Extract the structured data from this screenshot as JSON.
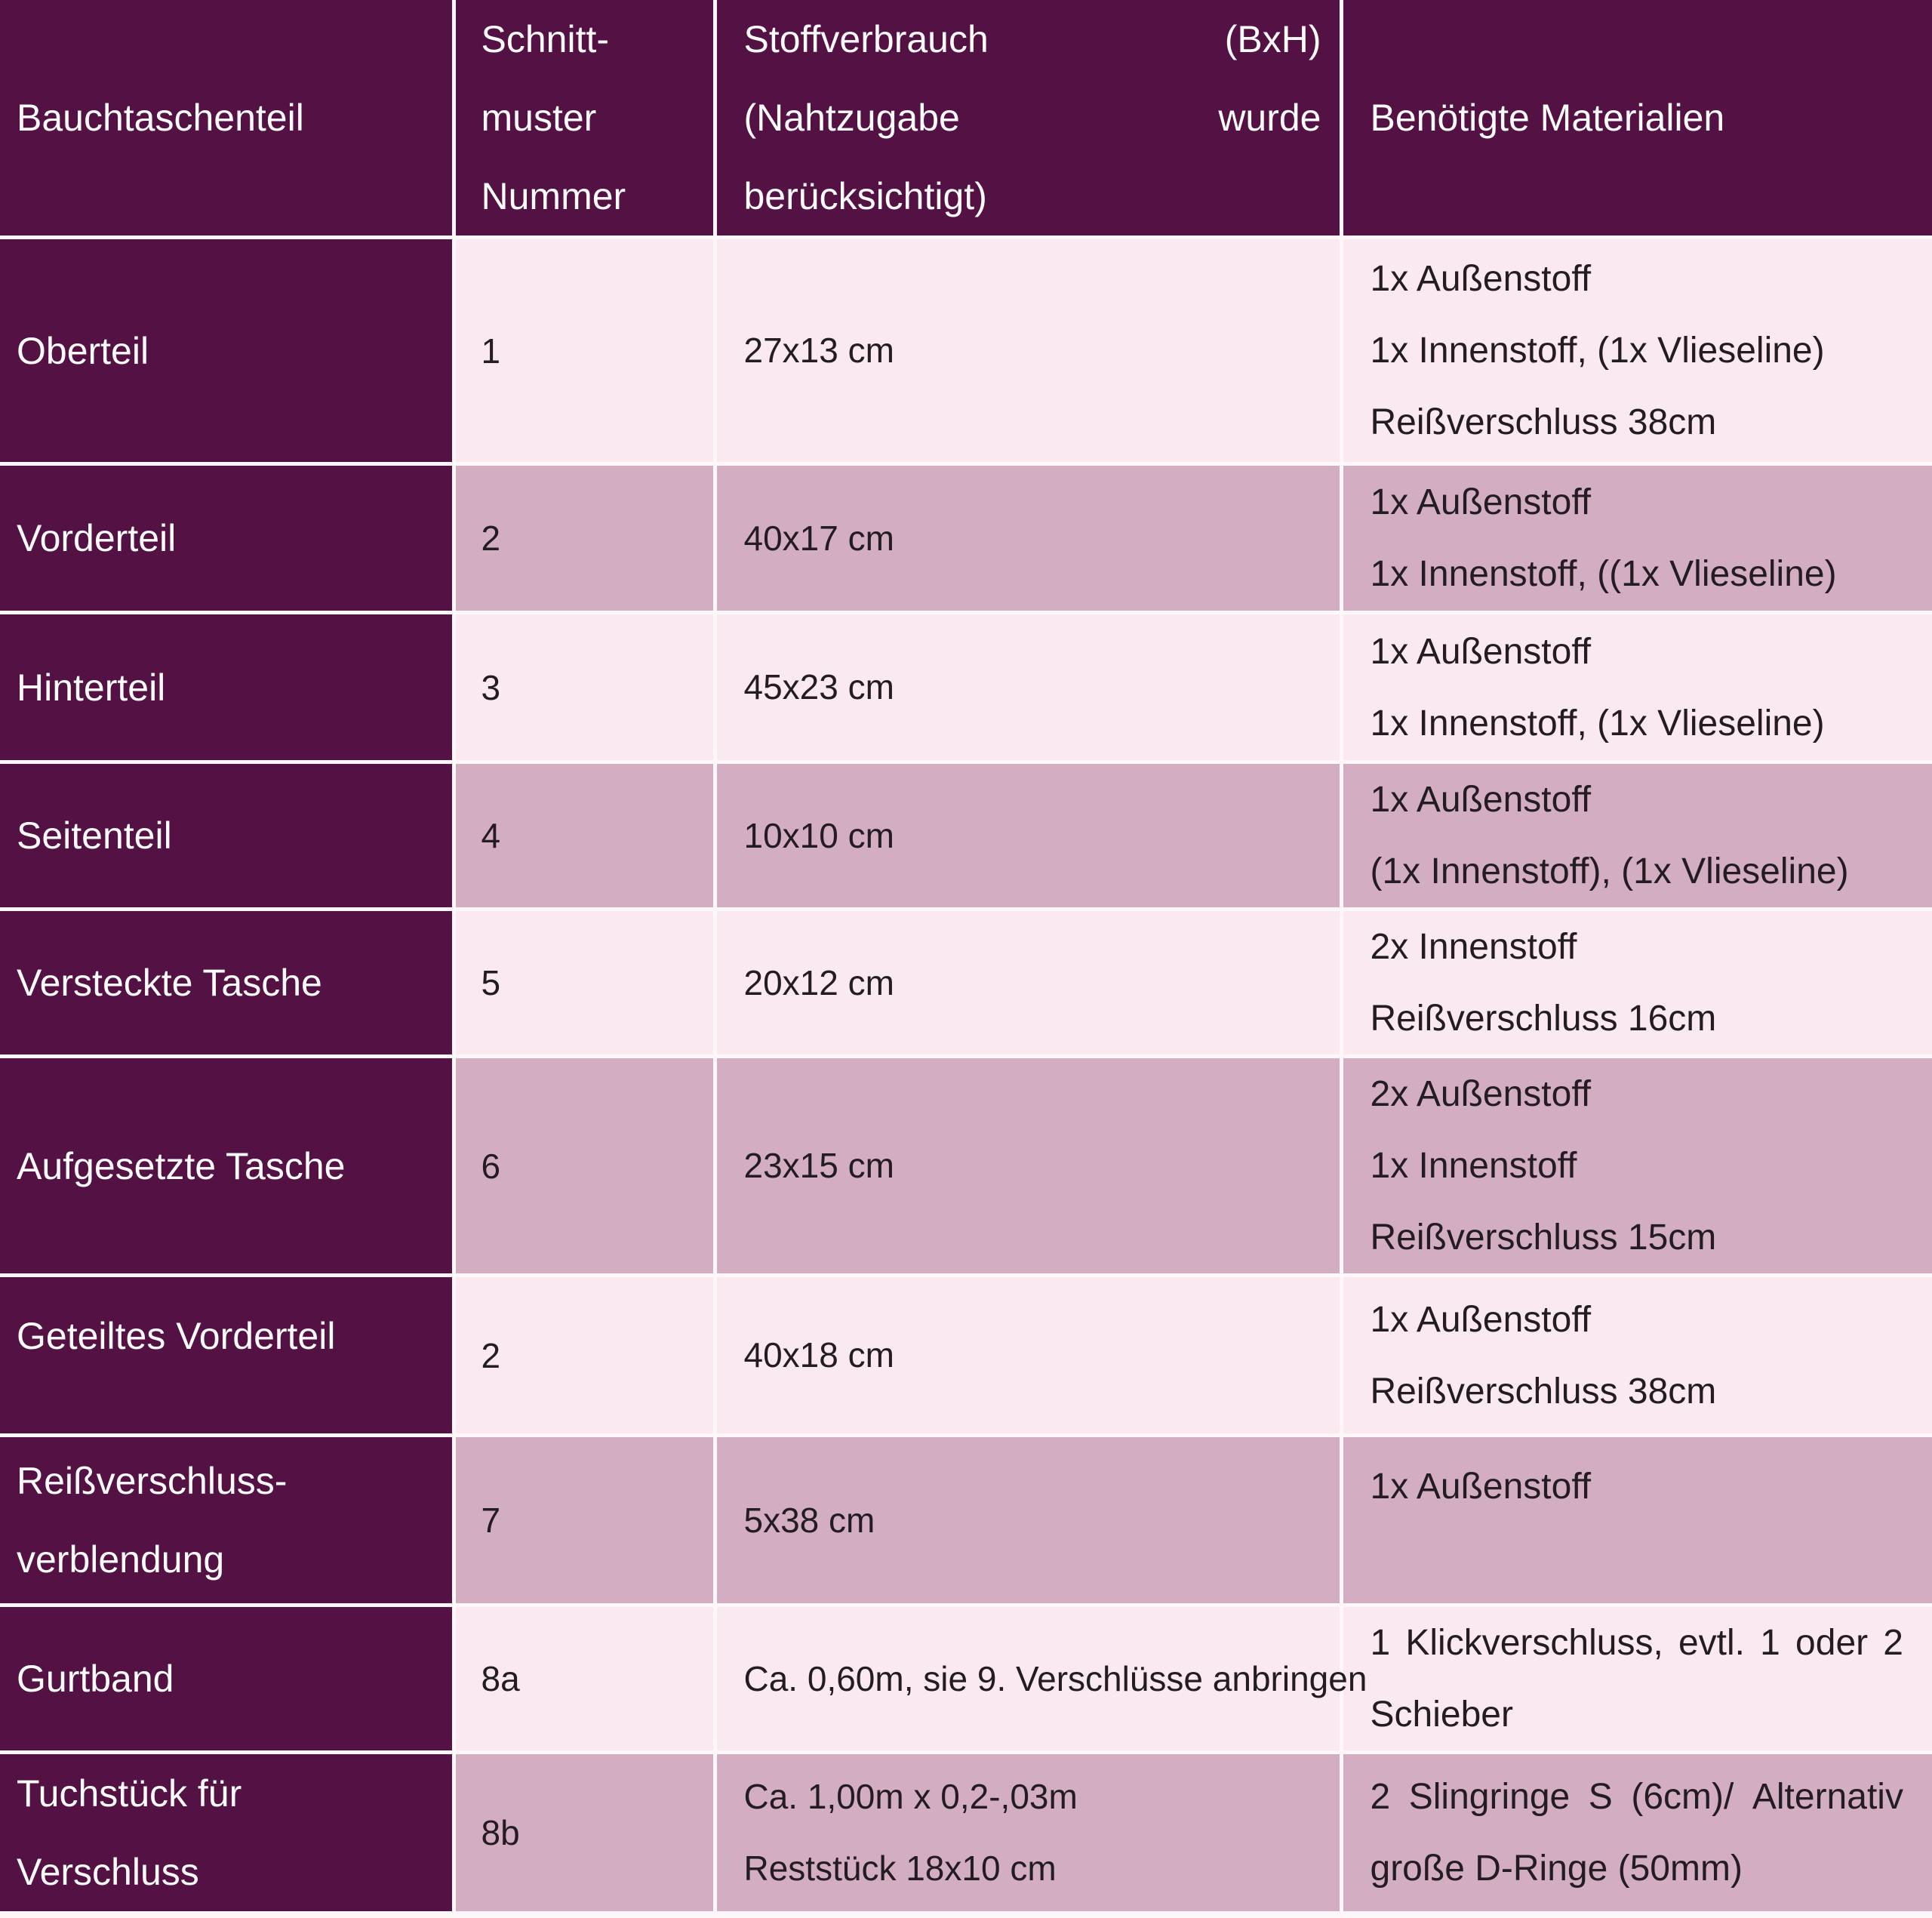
{
  "colors": {
    "header_bg": "#541144",
    "row_light": "#fae9f1",
    "row_dark": "#d3aec3",
    "grid": "#fdf7fa",
    "header_text": "#fdfbfc",
    "body_text": "#241c23"
  },
  "table": {
    "header": {
      "part": "Bauchtaschenteil",
      "pattern_lines": [
        "Schnitt-",
        "muster",
        "Nummer"
      ],
      "fabric_lines": [
        [
          "Stoffverbrauch",
          "(BxH)"
        ],
        [
          "(Nahtzugabe",
          "wurde"
        ],
        [
          "berücksichtigt)",
          ""
        ]
      ],
      "materials": "Benötigte Materialien"
    },
    "rows": [
      {
        "part_lines": [
          "Oberteil"
        ],
        "pattern_number": "1",
        "fabric_lines": [
          "27x13 cm"
        ],
        "materials_lines": [
          "1x Außenstoff",
          "1x Innenstoff, (1x Vlieseline)",
          "Reißverschluss 38cm"
        ],
        "materials_justify": false
      },
      {
        "part_lines": [
          "Vorderteil"
        ],
        "pattern_number": "2",
        "fabric_lines": [
          "40x17 cm"
        ],
        "materials_lines": [
          "1x Außenstoff",
          "1x Innenstoff, ((1x Vlieseline)"
        ],
        "materials_justify": false
      },
      {
        "part_lines": [
          "Hinterteil"
        ],
        "pattern_number": "3",
        "fabric_lines": [
          "45x23 cm"
        ],
        "materials_lines": [
          "1x Außenstoff",
          "1x Innenstoff, (1x Vlieseline)"
        ],
        "materials_justify": false
      },
      {
        "part_lines": [
          "Seitenteil"
        ],
        "pattern_number": "4",
        "fabric_lines": [
          "10x10 cm"
        ],
        "materials_lines": [
          "1x Außenstoff",
          "(1x Innenstoff), (1x Vlieseline)"
        ],
        "materials_justify": false
      },
      {
        "part_lines": [
          "Versteckte Tasche"
        ],
        "pattern_number": "5",
        "fabric_lines": [
          "20x12 cm"
        ],
        "materials_lines": [
          "2x Innenstoff",
          "Reißverschluss 16cm"
        ],
        "materials_justify": false
      },
      {
        "part_lines": [
          "Aufgesetzte Tasche"
        ],
        "pattern_number": "6",
        "fabric_lines": [
          "23x15 cm"
        ],
        "materials_lines": [
          "2x Außenstoff",
          "1x Innenstoff",
          "Reißverschluss 15cm"
        ],
        "materials_justify": false
      },
      {
        "part_lines": [
          "Geteiltes Vorderteil"
        ],
        "pattern_number": "2",
        "fabric_lines": [
          "40x18 cm"
        ],
        "materials_lines": [
          "1x Außenstoff",
          "Reißverschluss 38cm"
        ],
        "materials_justify": false
      },
      {
        "part_lines": [
          "Reißverschluss-",
          "verblendung"
        ],
        "pattern_number": "7",
        "fabric_lines": [
          "5x38 cm"
        ],
        "materials_lines": [
          "1x Außenstoff"
        ],
        "materials_justify": false
      },
      {
        "part_lines": [
          "Gurtband"
        ],
        "pattern_number": "8a",
        "fabric_lines": [
          "Ca. 0,60m, sie 9. Verschlüsse anbringen"
        ],
        "materials_lines": [
          "1 Klickverschluss, evtl. 1 oder 2",
          "Schieber"
        ],
        "materials_justify": true
      },
      {
        "part_lines": [
          "Tuchstück für",
          "Verschluss"
        ],
        "pattern_number": "8b",
        "fabric_lines": [
          "Ca. 1,00m x 0,2-,03m",
          "Reststück 18x10 cm"
        ],
        "materials_lines": [
          "2 Slingringe S (6cm)/ Alternativ",
          "große D-Ringe (50mm)"
        ],
        "materials_justify": true
      }
    ]
  }
}
